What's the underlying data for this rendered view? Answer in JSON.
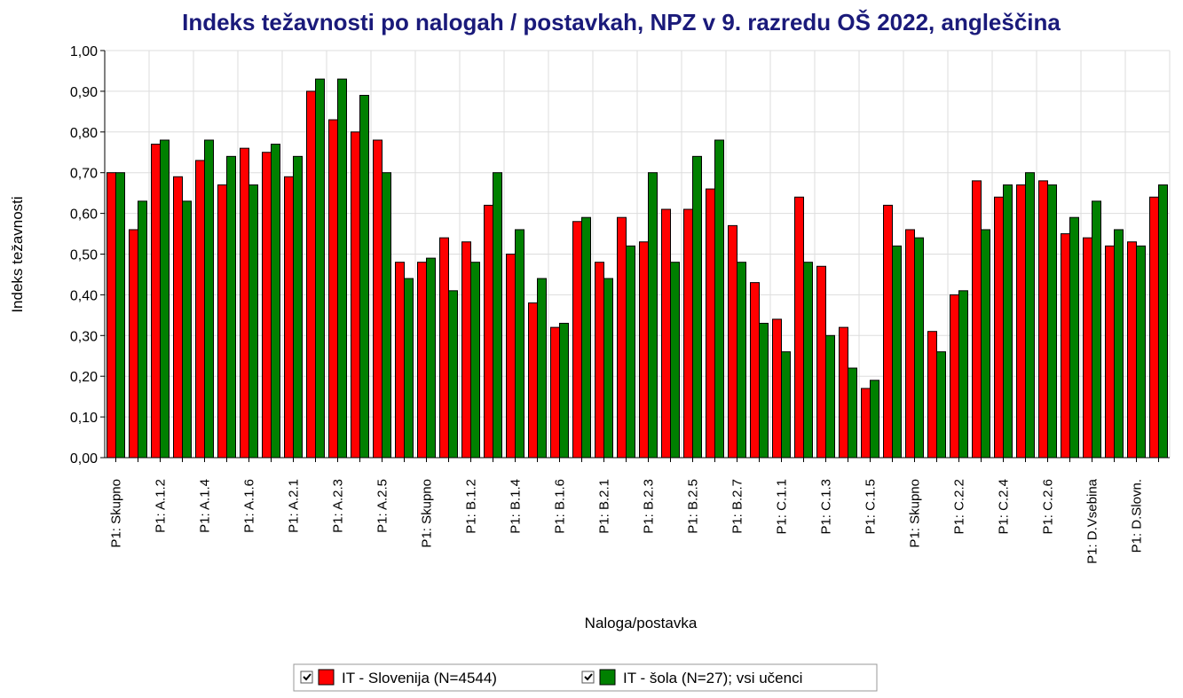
{
  "chart_data": {
    "type": "bar",
    "title": "Indeks težavnosti po nalogah / postavkah, NPZ v 9. razredu OŠ 2022, angleščina",
    "x_label": "Naloga/postavka",
    "y_label": "Indeks težavnosti",
    "categories": [
      "P1: Skupno",
      null,
      "P1: A.1.2",
      null,
      "P1: A.1.4",
      null,
      "P1: A.1.6",
      null,
      "P1: A.2.1",
      null,
      "P1: A.2.3",
      null,
      "P1: A.2.5",
      null,
      "P1: Skupno",
      null,
      "P1: B.1.2",
      null,
      "P1: B.1.4",
      null,
      "P1: B.1.6",
      null,
      "P1: B.2.1",
      null,
      "P1: B.2.3",
      null,
      "P1: B.2.5",
      null,
      "P1: B.2.7",
      null,
      "P1: C.1.1",
      null,
      "P1: C.1.3",
      null,
      "P1: C.1.5",
      null,
      "P1: Skupno",
      null,
      "P1: C.2.2",
      null,
      "P1: C.2.4",
      null,
      "P1: C.2.6",
      null,
      "P1: D.Vsebina",
      null,
      "P1: D.Slovn.",
      null
    ],
    "series": [
      {
        "name": "IT - Slovenija (N=4544)",
        "color": "#ff0000",
        "values": [
          0.7,
          0.56,
          0.77,
          0.69,
          0.73,
          0.67,
          0.76,
          0.75,
          0.69,
          0.9,
          0.83,
          0.8,
          0.78,
          0.48,
          0.48,
          0.54,
          0.53,
          0.62,
          0.5,
          0.38,
          0.32,
          0.58,
          0.48,
          0.59,
          0.53,
          0.61,
          0.61,
          0.66,
          0.57,
          0.43,
          0.34,
          0.64,
          0.47,
          0.32,
          0.17,
          0.62,
          0.56,
          0.31,
          0.4,
          0.68,
          0.64,
          0.67,
          0.68,
          0.55,
          0.54,
          0.52,
          0.53,
          0.64
        ]
      },
      {
        "name": "IT - šola (N=27); vsi učenci",
        "color": "#008000",
        "values": [
          0.7,
          0.63,
          0.78,
          0.63,
          0.78,
          0.74,
          0.67,
          0.77,
          0.74,
          0.93,
          0.93,
          0.89,
          0.7,
          0.44,
          0.49,
          0.41,
          0.48,
          0.7,
          0.56,
          0.44,
          0.33,
          0.59,
          0.44,
          0.52,
          0.7,
          0.48,
          0.74,
          0.78,
          0.48,
          0.33,
          0.26,
          0.48,
          0.3,
          0.22,
          0.19,
          0.52,
          0.54,
          0.26,
          0.41,
          0.56,
          0.67,
          0.7,
          0.67,
          0.59,
          0.63,
          0.56,
          0.52,
          0.67
        ]
      }
    ],
    "ylim": [
      0,
      1
    ],
    "yticks": [
      {
        "value": 0,
        "label": "0,00"
      },
      {
        "value": 0.1,
        "label": "0,10"
      },
      {
        "value": 0.2,
        "label": "0,20"
      },
      {
        "value": 0.3,
        "label": "0,30"
      },
      {
        "value": 0.4,
        "label": "0,40"
      },
      {
        "value": 0.5,
        "label": "0,50"
      },
      {
        "value": 0.6,
        "label": "0,60"
      },
      {
        "value": 0.7,
        "label": "0,70"
      },
      {
        "value": 0.8,
        "label": "0,80"
      },
      {
        "value": 0.9,
        "label": "0,90"
      },
      {
        "value": 1,
        "label": "1,00"
      }
    ],
    "grid": true
  }
}
